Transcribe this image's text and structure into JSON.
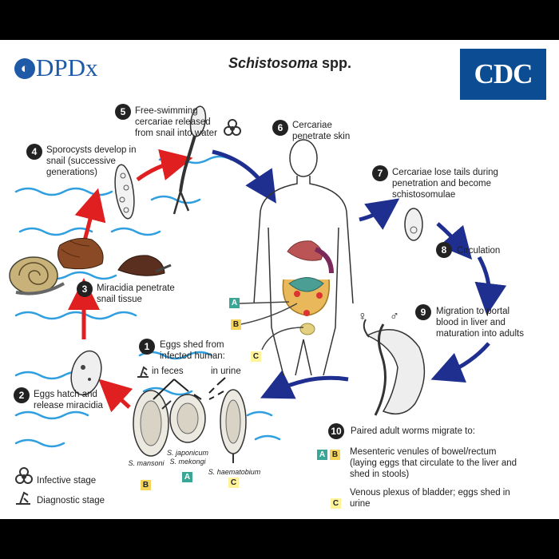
{
  "header": {
    "logo_left": "DPDx",
    "title_italic": "Schistosoma",
    "title_rest": " spp.",
    "logo_right": "CDC"
  },
  "steps": [
    {
      "num": "1",
      "text": "Eggs shed from infected human:"
    },
    {
      "num": "2",
      "text": "Eggs hatch and release miracidia"
    },
    {
      "num": "3",
      "text": "Miracidia penetrate snail tissue"
    },
    {
      "num": "4",
      "text": "Sporocysts develop in snail (successive generations)"
    },
    {
      "num": "5",
      "text": "Free-swimming cercariae released from snail into water"
    },
    {
      "num": "6",
      "text": "Cercariae penetrate skin"
    },
    {
      "num": "7",
      "text": "Cercariae lose tails during penetration and become schistosomulae"
    },
    {
      "num": "8",
      "text": "Circulation"
    },
    {
      "num": "9",
      "text": "Migration to portal blood in liver and maturation into adults"
    },
    {
      "num": "10",
      "text": "Paired adult worms migrate to:"
    }
  ],
  "egg_labels": {
    "feces": "in feces",
    "urine": "in urine"
  },
  "species": {
    "mansoni": "S. mansoni",
    "japonicum": "S. japonicum",
    "mekongi": "S. mekongi",
    "haematobium": "S. haematobium"
  },
  "badges": {
    "a": "A",
    "b": "B",
    "c": "C"
  },
  "migration": {
    "ab_text": "Mesenteric venules of bowel/rectum (laying eggs that circulate to the liver and shed in stools)",
    "c_text": "Venous plexus of bladder; eggs shed in urine"
  },
  "legend": {
    "infective": "Infective stage",
    "diagnostic": "Diagnostic stage"
  },
  "sex_symbols": {
    "female": "♀",
    "male": "♂"
  },
  "colors": {
    "arrow_red": "#e02020",
    "arrow_blue": "#1f2f8f",
    "water": "#2f9fe0",
    "cdc_blue": "#0b4c93"
  }
}
